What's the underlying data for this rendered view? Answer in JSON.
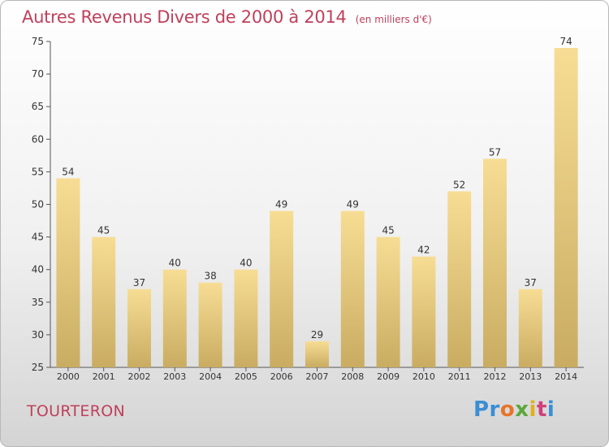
{
  "title": "Autres Revenus Divers de 2000 à 2014",
  "subtitle": "(en milliers d'€)",
  "commune": "TOURTERON",
  "logo": [
    "Pr",
    "o",
    "x",
    "i",
    "t",
    "i"
  ],
  "colors": {
    "title": "#c0405a",
    "bar_light": "#f7dd94",
    "bar_dark": "#c9ac62",
    "axis": "#555555"
  },
  "chart_data": {
    "type": "bar",
    "categories": [
      "2000",
      "2001",
      "2002",
      "2003",
      "2004",
      "2005",
      "2006",
      "2007",
      "2008",
      "2009",
      "2010",
      "2011",
      "2012",
      "2013",
      "2014"
    ],
    "values": [
      54,
      45,
      37,
      40,
      38,
      40,
      49,
      29,
      49,
      45,
      42,
      52,
      57,
      37,
      74
    ],
    "ylim": [
      25,
      75
    ],
    "yticks": [
      25,
      30,
      35,
      40,
      45,
      50,
      55,
      60,
      65,
      70,
      75
    ],
    "grid": false,
    "data_labels": true
  }
}
